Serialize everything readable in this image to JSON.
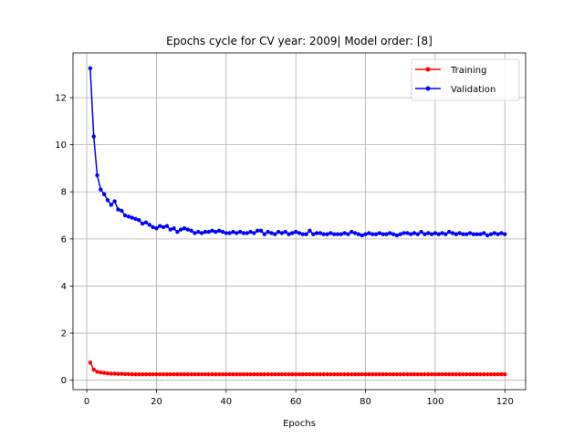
{
  "chart_data": {
    "type": "line",
    "title": "Epochs cycle for CV year: 2009| Model order: [8]",
    "xlabel": "Epochs",
    "ylabel": "",
    "xlim": [
      -3.95,
      125.95
    ],
    "ylim": [
      -0.4,
      13.9
    ],
    "xticks": [
      0,
      20,
      40,
      60,
      80,
      100,
      120
    ],
    "yticks": [
      0,
      2,
      4,
      6,
      8,
      10,
      12
    ],
    "grid": true,
    "legend_position": "upper right",
    "series": [
      {
        "name": "Training",
        "color": "#ff0000",
        "marker": "dot",
        "x": [
          1,
          2,
          3,
          4,
          5,
          6,
          7,
          8,
          9,
          10,
          11,
          12,
          13,
          14,
          15,
          16,
          17,
          18,
          19,
          20,
          21,
          22,
          23,
          24,
          25,
          26,
          27,
          28,
          29,
          30,
          31,
          32,
          33,
          34,
          35,
          36,
          37,
          38,
          39,
          40,
          41,
          42,
          43,
          44,
          45,
          46,
          47,
          48,
          49,
          50,
          51,
          52,
          53,
          54,
          55,
          56,
          57,
          58,
          59,
          60,
          61,
          62,
          63,
          64,
          65,
          66,
          67,
          68,
          69,
          70,
          71,
          72,
          73,
          74,
          75,
          76,
          77,
          78,
          79,
          80,
          81,
          82,
          83,
          84,
          85,
          86,
          87,
          88,
          89,
          90,
          91,
          92,
          93,
          94,
          95,
          96,
          97,
          98,
          99,
          100,
          101,
          102,
          103,
          104,
          105,
          106,
          107,
          108,
          109,
          110,
          111,
          112,
          113,
          114,
          115,
          116,
          117,
          118,
          119,
          120
        ],
        "values": [
          0.75,
          0.45,
          0.36,
          0.33,
          0.31,
          0.29,
          0.28,
          0.28,
          0.27,
          0.27,
          0.26,
          0.26,
          0.25,
          0.25,
          0.25,
          0.25,
          0.25,
          0.25,
          0.25,
          0.25,
          0.25,
          0.25,
          0.25,
          0.25,
          0.25,
          0.25,
          0.25,
          0.25,
          0.25,
          0.25,
          0.25,
          0.25,
          0.25,
          0.25,
          0.25,
          0.25,
          0.25,
          0.25,
          0.25,
          0.25,
          0.25,
          0.25,
          0.25,
          0.25,
          0.25,
          0.25,
          0.25,
          0.25,
          0.25,
          0.25,
          0.25,
          0.25,
          0.25,
          0.25,
          0.25,
          0.25,
          0.25,
          0.25,
          0.25,
          0.25,
          0.25,
          0.25,
          0.25,
          0.25,
          0.25,
          0.25,
          0.25,
          0.25,
          0.25,
          0.25,
          0.25,
          0.25,
          0.25,
          0.25,
          0.25,
          0.25,
          0.25,
          0.25,
          0.25,
          0.25,
          0.25,
          0.25,
          0.25,
          0.25,
          0.25,
          0.25,
          0.25,
          0.25,
          0.25,
          0.25,
          0.25,
          0.25,
          0.25,
          0.25,
          0.25,
          0.25,
          0.25,
          0.25,
          0.25,
          0.25,
          0.25,
          0.25,
          0.25,
          0.25,
          0.25,
          0.25,
          0.25,
          0.25,
          0.25,
          0.25,
          0.25,
          0.25,
          0.25,
          0.25,
          0.25,
          0.25,
          0.25,
          0.25,
          0.25,
          0.25
        ]
      },
      {
        "name": "Validation",
        "color": "#0000ff",
        "marker": "dot",
        "x": [
          1,
          2,
          3,
          4,
          5,
          6,
          7,
          8,
          9,
          10,
          11,
          12,
          13,
          14,
          15,
          16,
          17,
          18,
          19,
          20,
          21,
          22,
          23,
          24,
          25,
          26,
          27,
          28,
          29,
          30,
          31,
          32,
          33,
          34,
          35,
          36,
          37,
          38,
          39,
          40,
          41,
          42,
          43,
          44,
          45,
          46,
          47,
          48,
          49,
          50,
          51,
          52,
          53,
          54,
          55,
          56,
          57,
          58,
          59,
          60,
          61,
          62,
          63,
          64,
          65,
          66,
          67,
          68,
          69,
          70,
          71,
          72,
          73,
          74,
          75,
          76,
          77,
          78,
          79,
          80,
          81,
          82,
          83,
          84,
          85,
          86,
          87,
          88,
          89,
          90,
          91,
          92,
          93,
          94,
          95,
          96,
          97,
          98,
          99,
          100,
          101,
          102,
          103,
          104,
          105,
          106,
          107,
          108,
          109,
          110,
          111,
          112,
          113,
          114,
          115,
          116,
          117,
          118,
          119,
          120
        ],
        "values": [
          13.25,
          10.35,
          8.7,
          8.1,
          7.9,
          7.65,
          7.45,
          7.6,
          7.25,
          7.2,
          7.0,
          6.95,
          6.9,
          6.85,
          6.8,
          6.65,
          6.7,
          6.6,
          6.5,
          6.45,
          6.55,
          6.5,
          6.55,
          6.4,
          6.45,
          6.3,
          6.4,
          6.45,
          6.4,
          6.35,
          6.25,
          6.3,
          6.25,
          6.3,
          6.3,
          6.35,
          6.3,
          6.35,
          6.3,
          6.25,
          6.25,
          6.3,
          6.25,
          6.3,
          6.25,
          6.25,
          6.3,
          6.25,
          6.35,
          6.35,
          6.2,
          6.3,
          6.25,
          6.2,
          6.3,
          6.25,
          6.3,
          6.2,
          6.25,
          6.3,
          6.25,
          6.2,
          6.2,
          6.35,
          6.2,
          6.25,
          6.25,
          6.2,
          6.2,
          6.25,
          6.2,
          6.2,
          6.2,
          6.25,
          6.2,
          6.3,
          6.25,
          6.2,
          6.15,
          6.2,
          6.25,
          6.2,
          6.2,
          6.25,
          6.2,
          6.2,
          6.25,
          6.2,
          6.15,
          6.2,
          6.25,
          6.25,
          6.2,
          6.25,
          6.2,
          6.3,
          6.2,
          6.25,
          6.2,
          6.25,
          6.2,
          6.25,
          6.2,
          6.3,
          6.25,
          6.2,
          6.25,
          6.2,
          6.2,
          6.25,
          6.2,
          6.2,
          6.2,
          6.25,
          6.15,
          6.2,
          6.25,
          6.2,
          6.25,
          6.2
        ]
      }
    ]
  }
}
